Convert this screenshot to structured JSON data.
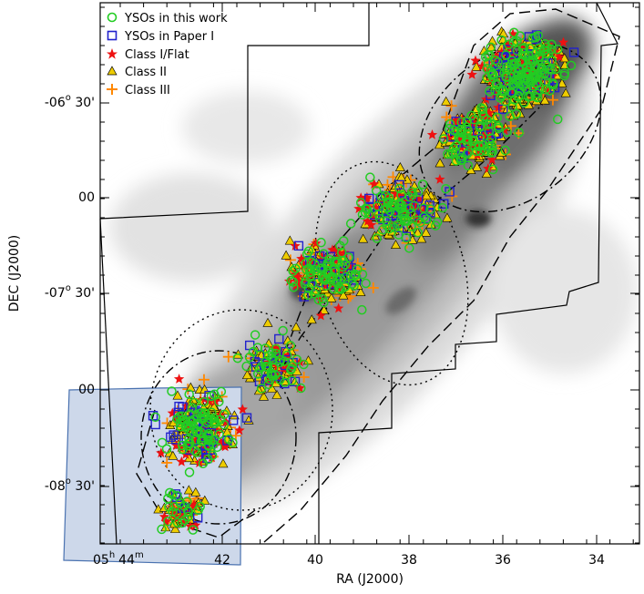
{
  "chart_data": {
    "type": "scatter",
    "title": "",
    "xlabel": "RA (J2000)",
    "ylabel": "DEC (J2000)",
    "x_axis_label_parts": {
      "hours_prefix": "05",
      "h": "h",
      "minutes": "44",
      "m": "m"
    },
    "x_tick_labels": [
      "42",
      "40",
      "38",
      "36",
      "34"
    ],
    "y_tick_labels": [
      {
        "deg": "-06",
        "o": "o",
        "rest": " 30'"
      },
      {
        "deg": "",
        "o": "",
        "rest": "00"
      },
      {
        "deg": "-07",
        "o": "o",
        "rest": " 30'"
      },
      {
        "deg": "",
        "o": "",
        "rest": "00"
      },
      {
        "deg": "-08",
        "o": "o",
        "rest": " 30'"
      }
    ],
    "xlim_minutes": [
      45.0,
      33.4
    ],
    "ylim_degrees": [
      -8.85,
      -5.75
    ],
    "x_units": "RA minutes of 05h",
    "y_units": "degrees",
    "background": "grayscale extinction map",
    "grid": false,
    "legend_position": "top-left",
    "legend": [
      {
        "label": "YSOs in this work",
        "marker": "circle-open",
        "color": "#22cc22"
      },
      {
        "label": "YSOs in Paper I",
        "marker": "square-open",
        "color": "#2222cc"
      },
      {
        "label": "Class I/Flat",
        "marker": "star",
        "color": "#ee1111"
      },
      {
        "label": "Class II",
        "marker": "triangle",
        "color": "#eecc00"
      },
      {
        "label": "Class III",
        "marker": "plus",
        "color": "#ff8800"
      }
    ],
    "series": [
      {
        "name": "YSOs in this work",
        "approx_count": 520
      },
      {
        "name": "YSOs in Paper I",
        "approx_count": 170
      },
      {
        "name": "Class I/Flat",
        "approx_count": 250
      },
      {
        "name": "Class II",
        "approx_count": 560
      },
      {
        "name": "Class III",
        "approx_count": 240
      }
    ]
  },
  "colors": {
    "inset_fill": "#cdd8ea",
    "inset_stroke": "#4a72b0",
    "outline": "#000000"
  }
}
